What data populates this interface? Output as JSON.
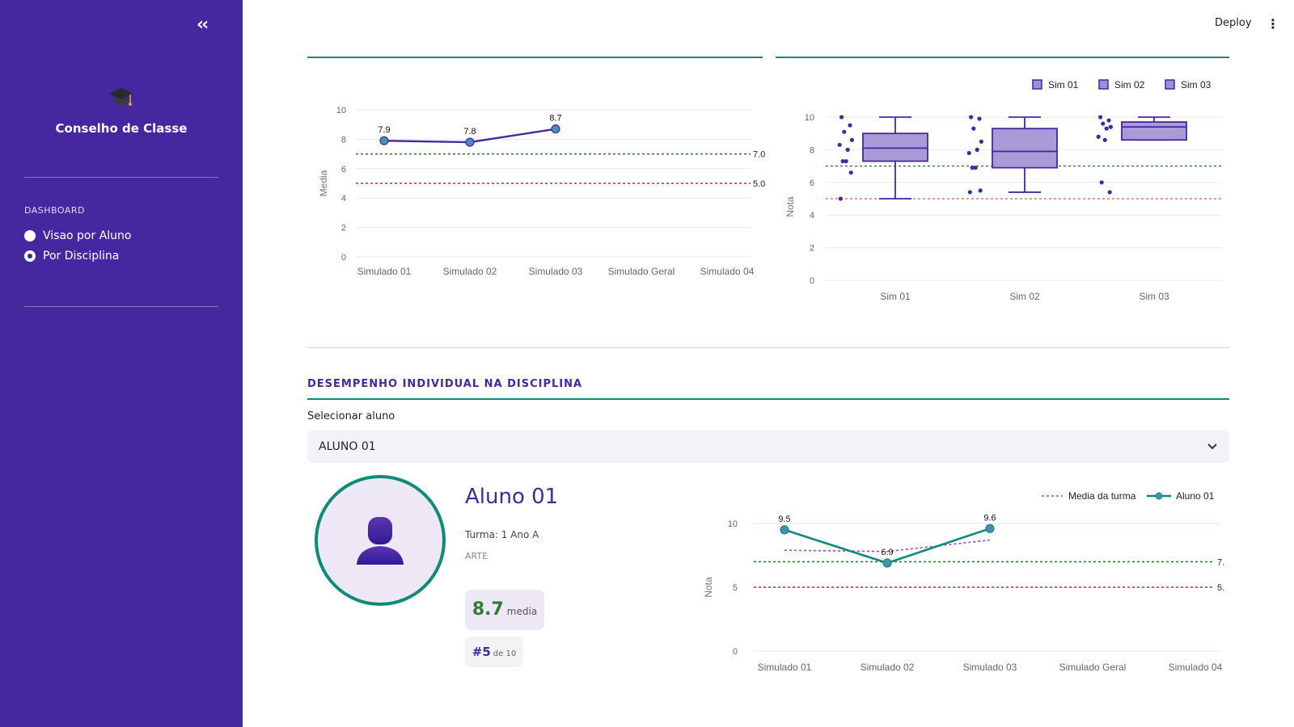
{
  "sidebar": {
    "app_title": "Conselho de Classe",
    "section_label": "DASHBOARD",
    "options": [
      {
        "label": "Visao por Aluno",
        "selected": false
      },
      {
        "label": "Por Disciplina",
        "selected": true
      }
    ],
    "background": "#4527a0"
  },
  "header": {
    "deploy_label": "Deploy"
  },
  "colors": {
    "accent": "#4527a0",
    "teal": "#0e8a76",
    "good_line": "#2e7d32",
    "bad_line": "#c62828"
  },
  "section": {
    "title": "DESEMPENHO INDIVIDUAL NA DISCIPLINA"
  },
  "select": {
    "label": "Selecionar aluno",
    "value": "ALUNO 01"
  },
  "student": {
    "name": "Aluno 01",
    "turma": "Turma: 1 Ano A",
    "disciplina": "ARTE",
    "media_value": "8.7",
    "media_label": "media",
    "rank_value": "#5",
    "rank_label": "de 10"
  },
  "chart_data": [
    {
      "type": "line",
      "ylabel": "Media",
      "categories": [
        "Simulado 01",
        "Simulado 02",
        "Simulado 03",
        "Simulado Geral",
        "Simulado 04"
      ],
      "yticks": [
        "0",
        "2",
        "4",
        "6",
        "8",
        "10"
      ],
      "ylim": [
        0,
        10
      ],
      "series": [
        {
          "values": [
            7.9,
            7.8,
            8.7,
            null,
            null
          ]
        }
      ],
      "data_labels": [
        "7.9",
        "7.8",
        "8.7"
      ],
      "thresholds": [
        {
          "value": 7.0,
          "label": "7.0",
          "color": "#2e7d32"
        },
        {
          "value": 5.0,
          "label": "5.0",
          "color": "#c62828"
        }
      ]
    },
    {
      "type": "box",
      "ylabel": "Nota",
      "categories": [
        "Sim 01",
        "Sim 02",
        "Sim 03"
      ],
      "yticks": [
        "0",
        "2",
        "4",
        "6",
        "8",
        "10"
      ],
      "ylim": [
        0,
        10
      ],
      "legend": [
        "Sim 01",
        "Sim 02",
        "Sim 03"
      ],
      "legend_position": "top-right",
      "boxes": [
        {
          "min": 5.0,
          "q1": 7.3,
          "median": 8.1,
          "q3": 9.0,
          "max": 10.0,
          "points": [
            10.0,
            9.5,
            9.1,
            8.6,
            8.0,
            8.3,
            7.3,
            7.3,
            6.6,
            5.0
          ]
        },
        {
          "min": 5.4,
          "q1": 6.9,
          "median": 7.9,
          "q3": 9.3,
          "max": 10.0,
          "points": [
            10.0,
            9.9,
            9.3,
            8.5,
            8.0,
            7.8,
            6.9,
            6.9,
            5.5,
            5.4
          ]
        },
        {
          "min": 8.6,
          "q1": 8.6,
          "median": 9.4,
          "q3": 9.7,
          "max": 10.0,
          "points": [
            10.0,
            9.8,
            9.6,
            9.4,
            9.3,
            8.8,
            8.6,
            6.0,
            5.4
          ]
        }
      ],
      "thresholds": [
        {
          "value": 7.0,
          "color": "#2e7d32"
        },
        {
          "value": 5.0,
          "color": "#e57373"
        }
      ]
    },
    {
      "type": "line",
      "ylabel": "Nota",
      "categories": [
        "Simulado 01",
        "Simulado 02",
        "Simulado 03",
        "Simulado Geral",
        "Simulado 04"
      ],
      "yticks": [
        "0",
        "5",
        "10"
      ],
      "ylim": [
        0,
        10
      ],
      "legend_position": "top-right",
      "series": [
        {
          "name": "Media da turma",
          "values": [
            7.9,
            7.8,
            8.7,
            null,
            null
          ],
          "style": "dashed",
          "color": "#ab47bc"
        },
        {
          "name": "Aluno 01",
          "values": [
            9.5,
            6.9,
            9.6,
            null,
            null
          ],
          "style": "solid",
          "color": "#0e8a76"
        }
      ],
      "data_labels": [
        "9.5",
        "6.9",
        "9.6"
      ],
      "thresholds": [
        {
          "value": 7.0,
          "label": "7.",
          "color": "#2e7d32"
        },
        {
          "value": 5.0,
          "label": "5.",
          "color": "#c62828"
        }
      ]
    }
  ]
}
